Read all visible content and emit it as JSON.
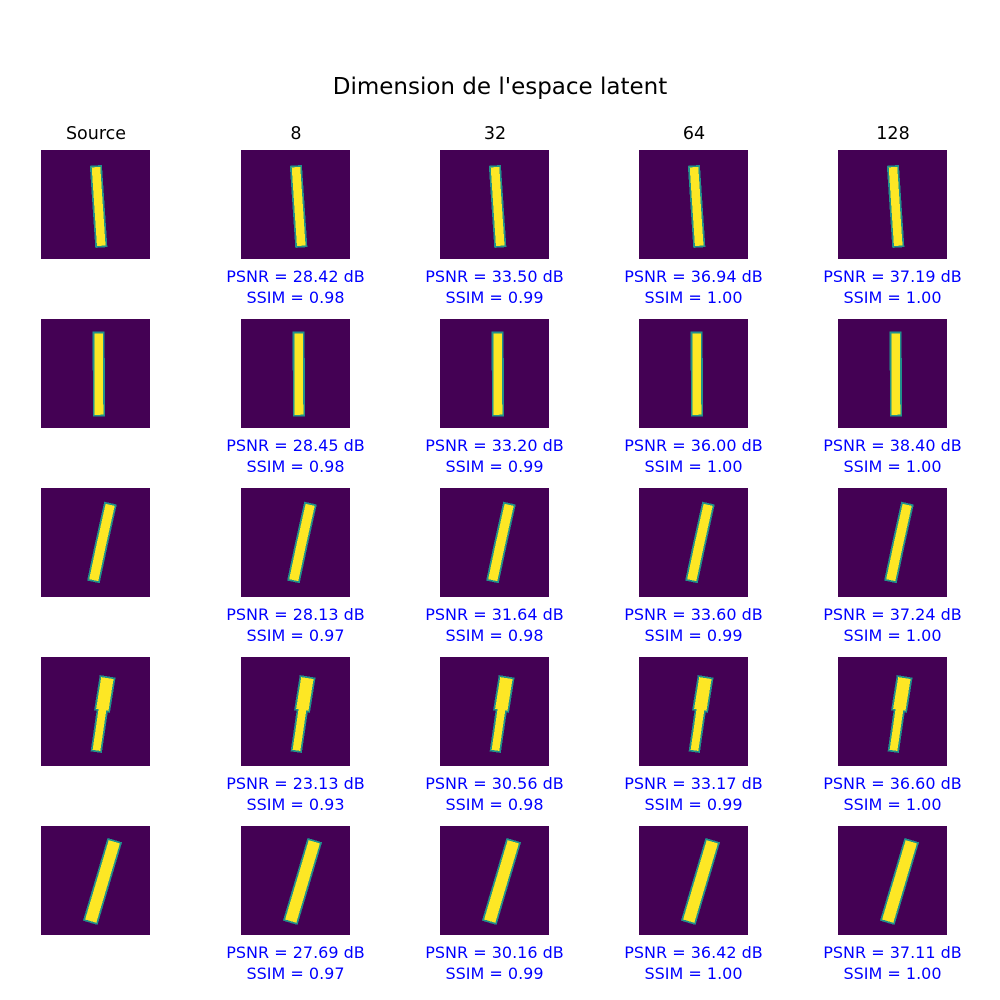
{
  "figure": {
    "title": "Dimension de l'espace latent",
    "columns": [
      "Source",
      "8",
      "32",
      "64",
      "128"
    ]
  },
  "colors": {
    "background": "#440154",
    "stroke": "#fde725",
    "edge": "#21918c",
    "metric_text": "#0000ff"
  },
  "rows": [
    {
      "digit": "1",
      "cells": [
        {
          "psnr": "",
          "ssim": ""
        },
        {
          "psnr": "PSNR = 28.42 dB",
          "ssim": "SSIM = 0.98"
        },
        {
          "psnr": "PSNR = 33.50 dB",
          "ssim": "SSIM = 0.99"
        },
        {
          "psnr": "PSNR = 36.94 dB",
          "ssim": "SSIM = 1.00"
        },
        {
          "psnr": "PSNR = 37.19 dB",
          "ssim": "SSIM = 1.00"
        }
      ]
    },
    {
      "digit": "1",
      "cells": [
        {
          "psnr": "",
          "ssim": ""
        },
        {
          "psnr": "PSNR = 28.45 dB",
          "ssim": "SSIM = 0.98"
        },
        {
          "psnr": "PSNR = 33.20 dB",
          "ssim": "SSIM = 0.99"
        },
        {
          "psnr": "PSNR = 36.00 dB",
          "ssim": "SSIM = 1.00"
        },
        {
          "psnr": "PSNR = 38.40 dB",
          "ssim": "SSIM = 1.00"
        }
      ]
    },
    {
      "digit": "1",
      "cells": [
        {
          "psnr": "",
          "ssim": ""
        },
        {
          "psnr": "PSNR = 28.13 dB",
          "ssim": "SSIM = 0.97"
        },
        {
          "psnr": "PSNR = 31.64 dB",
          "ssim": "SSIM = 0.98"
        },
        {
          "psnr": "PSNR = 33.60 dB",
          "ssim": "SSIM = 0.99"
        },
        {
          "psnr": "PSNR = 37.24 dB",
          "ssim": "SSIM = 1.00"
        }
      ]
    },
    {
      "digit": "1",
      "cells": [
        {
          "psnr": "",
          "ssim": ""
        },
        {
          "psnr": "PSNR = 23.13 dB",
          "ssim": "SSIM = 0.93"
        },
        {
          "psnr": "PSNR = 30.56 dB",
          "ssim": "SSIM = 0.98"
        },
        {
          "psnr": "PSNR = 33.17 dB",
          "ssim": "SSIM = 0.99"
        },
        {
          "psnr": "PSNR = 36.60 dB",
          "ssim": "SSIM = 1.00"
        }
      ]
    },
    {
      "digit": "1",
      "cells": [
        {
          "psnr": "",
          "ssim": ""
        },
        {
          "psnr": "PSNR = 27.69 dB",
          "ssim": "SSIM = 0.97"
        },
        {
          "psnr": "PSNR = 30.16 dB",
          "ssim": "SSIM = 0.99"
        },
        {
          "psnr": "PSNR = 36.42 dB",
          "ssim": "SSIM = 1.00"
        },
        {
          "psnr": "PSNR = 37.11 dB",
          "ssim": "SSIM = 1.00"
        }
      ]
    }
  ]
}
